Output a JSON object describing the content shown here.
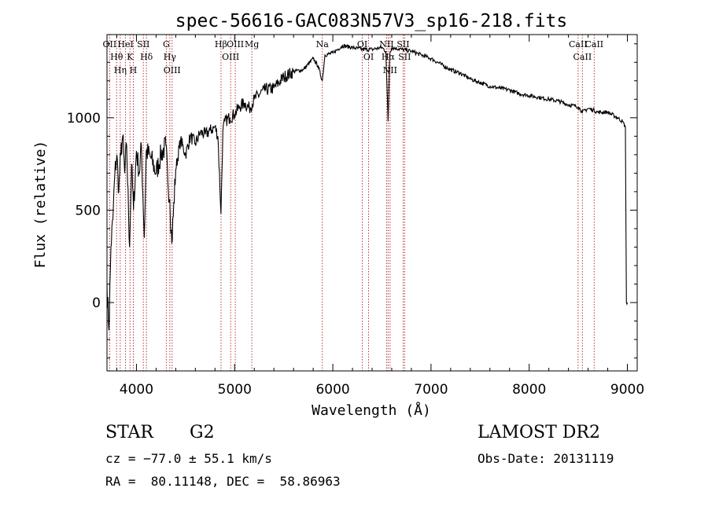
{
  "chart_data": {
    "type": "line",
    "title": "spec-56616-GAC083N57V3_sp16-218.fits",
    "xlabel": "Wavelength (Å)",
    "ylabel": "Flux (relative)",
    "xlim": [
      3700,
      9100
    ],
    "ylim": [
      -370,
      1450
    ],
    "xticks": [
      4000,
      5000,
      6000,
      7000,
      8000,
      9000
    ],
    "yticks": [
      0,
      500,
      1000
    ],
    "grid": false,
    "line_color": "#000000",
    "marker_color": "#b22222",
    "series": [
      {
        "x": [
          3700,
          3720,
          3740,
          3760,
          3780,
          3800,
          3820,
          3840,
          3860,
          3880,
          3900,
          3930,
          3950,
          3970,
          4000,
          4030,
          4050,
          4080,
          4100,
          4150,
          4200,
          4250,
          4300,
          4320,
          4340,
          4360,
          4400,
          4450,
          4500,
          4550,
          4600,
          4650,
          4700,
          4750,
          4800,
          4830,
          4861,
          4880,
          4900,
          4950,
          5000,
          5050,
          5100,
          5150,
          5200,
          5300,
          5400,
          5500,
          5600,
          5700,
          5800,
          5850,
          5893,
          5920,
          6000,
          6100,
          6200,
          6300,
          6400,
          6500,
          6540,
          6563,
          6580,
          6600,
          6700,
          6800,
          6900,
          7000,
          7100,
          7200,
          7300,
          7400,
          7500,
          7600,
          7700,
          7800,
          7900,
          8000,
          8100,
          8200,
          8300,
          8400,
          8500,
          8542,
          8600,
          8662,
          8700,
          8800,
          8900,
          8950,
          8980,
          8990,
          9000
        ],
        "y": [
          100,
          -150,
          300,
          450,
          700,
          800,
          600,
          800,
          900,
          700,
          850,
          300,
          750,
          500,
          820,
          700,
          850,
          350,
          820,
          780,
          700,
          800,
          850,
          650,
          560,
          320,
          720,
          880,
          800,
          900,
          860,
          920,
          910,
          930,
          950,
          900,
          480,
          930,
          980,
          1000,
          1020,
          1060,
          1080,
          1050,
          1100,
          1150,
          1160,
          1220,
          1250,
          1260,
          1320,
          1280,
          1200,
          1340,
          1350,
          1390,
          1380,
          1370,
          1370,
          1380,
          1360,
          980,
          1350,
          1380,
          1370,
          1360,
          1340,
          1320,
          1290,
          1260,
          1240,
          1210,
          1190,
          1170,
          1160,
          1150,
          1130,
          1120,
          1110,
          1100,
          1090,
          1070,
          1060,
          1030,
          1050,
          1040,
          1030,
          1030,
          1000,
          980,
          950,
          0,
          0
        ]
      }
    ],
    "lines": [
      {
        "x": 3727,
        "label": "OII"
      },
      {
        "x": 3798,
        "label": "Hθ"
      },
      {
        "x": 3835,
        "label": "Hη"
      },
      {
        "x": 3889,
        "label": "HeI"
      },
      {
        "x": 3934,
        "label": "K"
      },
      {
        "x": 3968,
        "label": "H"
      },
      {
        "x": 4070,
        "label": "SII"
      },
      {
        "x": 4102,
        "label": "Hδ"
      },
      {
        "x": 4304,
        "label": "G"
      },
      {
        "x": 4340,
        "label": "Hγ"
      },
      {
        "x": 4363,
        "label": "OIII"
      },
      {
        "x": 4861,
        "label": "Hβ"
      },
      {
        "x": 4959,
        "label": "OIII"
      },
      {
        "x": 5007,
        "label": "OIII"
      },
      {
        "x": 5175,
        "label": "Mg"
      },
      {
        "x": 5893,
        "label": "Na"
      },
      {
        "x": 6300,
        "label": "OI"
      },
      {
        "x": 6364,
        "label": "OI"
      },
      {
        "x": 6548,
        "label": "NII"
      },
      {
        "x": 6563,
        "label": "Hα"
      },
      {
        "x": 6583,
        "label": "NII"
      },
      {
        "x": 6716,
        "label": "SII"
      },
      {
        "x": 6731,
        "label": "SII"
      },
      {
        "x": 8498,
        "label": "CaII"
      },
      {
        "x": 8542,
        "label": "CaII"
      },
      {
        "x": 8662,
        "label": "CaII"
      }
    ]
  },
  "info": {
    "object_class": "STAR",
    "subclass": "G2",
    "survey": "LAMOST DR2",
    "cz": "cz = −77.0 ± 55.1 km/s",
    "obs_date": "Obs-Date: 20131119",
    "coords": "RA =  80.11148, DEC =  58.86963"
  }
}
